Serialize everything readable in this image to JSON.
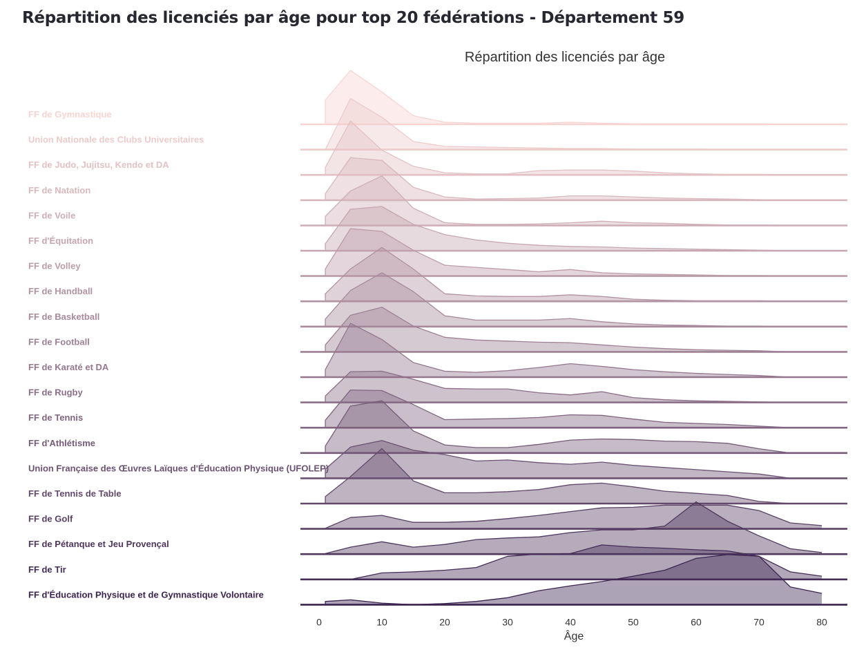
{
  "page": {
    "title": "Répartition des licenciés par âge pour top 20 fédérations - Département 59"
  },
  "chart_data": {
    "type": "area",
    "title": "Répartition des licenciés par âge",
    "xlabel": "Âge",
    "ylabel": "",
    "xlim": [
      -3,
      84
    ],
    "x_ticks": [
      0,
      10,
      20,
      30,
      40,
      50,
      60,
      70,
      80
    ],
    "x": [
      1,
      5,
      10,
      15,
      20,
      25,
      30,
      35,
      40,
      45,
      50,
      55,
      60,
      65,
      70,
      75,
      80
    ],
    "grid": false,
    "legend": "none",
    "palette": [
      "#F7D4D2",
      "#3B2450"
    ],
    "series": [
      {
        "name": "FF de Gymnastique",
        "values": [
          0.45,
          1.0,
          0.6,
          0.16,
          0.04,
          0.02,
          0.02,
          0.02,
          0.04,
          0.02,
          0.01,
          0.01,
          0.01,
          0.01,
          0.01,
          0.0,
          0.0
        ]
      },
      {
        "name": "Union Nationale des Clubs Universitaires",
        "values": [
          0.0,
          0.95,
          0.6,
          0.15,
          0.06,
          0.05,
          0.04,
          0.03,
          0.02,
          0.02,
          0.01,
          0.01,
          0.01,
          0.0,
          0.0,
          0.0,
          0.0
        ]
      },
      {
        "name": "FF de Judo, Jujitsu, Kendo et DA",
        "values": [
          0.14,
          1.0,
          0.46,
          0.16,
          0.04,
          0.02,
          0.02,
          0.08,
          0.09,
          0.09,
          0.07,
          0.04,
          0.02,
          0.01,
          0.01,
          0.0,
          0.0
        ]
      },
      {
        "name": "FF de Natation",
        "values": [
          0.12,
          0.79,
          0.74,
          0.24,
          0.06,
          0.02,
          0.03,
          0.04,
          0.08,
          0.08,
          0.06,
          0.04,
          0.03,
          0.02,
          0.01,
          0.0,
          0.0
        ]
      },
      {
        "name": "FF de Voile",
        "values": [
          0.17,
          0.64,
          0.92,
          0.32,
          0.05,
          0.02,
          0.02,
          0.03,
          0.05,
          0.08,
          0.05,
          0.04,
          0.02,
          0.01,
          0.01,
          0.0,
          0.0
        ]
      },
      {
        "name": "FF d'Équitation",
        "values": [
          0.13,
          0.77,
          0.82,
          0.49,
          0.3,
          0.2,
          0.14,
          0.1,
          0.08,
          0.07,
          0.05,
          0.04,
          0.03,
          0.02,
          0.01,
          0.0,
          0.0
        ]
      },
      {
        "name": "FF de Volley",
        "values": [
          0.13,
          0.88,
          0.83,
          0.48,
          0.2,
          0.16,
          0.12,
          0.08,
          0.12,
          0.06,
          0.04,
          0.03,
          0.02,
          0.01,
          0.01,
          0.0,
          0.0
        ]
      },
      {
        "name": "FF de Handball",
        "values": [
          0.14,
          0.6,
          1.0,
          0.6,
          0.14,
          0.1,
          0.09,
          0.09,
          0.12,
          0.09,
          0.04,
          0.02,
          0.01,
          0.01,
          0.01,
          0.0,
          0.0
        ]
      },
      {
        "name": "FF de Basketball",
        "values": [
          0.14,
          0.67,
          1.0,
          0.65,
          0.2,
          0.12,
          0.12,
          0.12,
          0.15,
          0.09,
          0.05,
          0.03,
          0.02,
          0.01,
          0.01,
          0.0,
          0.0
        ]
      },
      {
        "name": "FF de Football",
        "values": [
          0.13,
          0.68,
          0.83,
          0.48,
          0.27,
          0.22,
          0.2,
          0.18,
          0.17,
          0.13,
          0.09,
          0.06,
          0.04,
          0.03,
          0.02,
          0.0,
          0.0
        ]
      },
      {
        "name": "FF de Karaté et DA",
        "values": [
          0.14,
          1.0,
          0.7,
          0.27,
          0.11,
          0.09,
          0.12,
          0.18,
          0.25,
          0.2,
          0.14,
          0.1,
          0.07,
          0.05,
          0.03,
          0.0,
          0.0
        ]
      },
      {
        "name": "FF de Rugby",
        "values": [
          0.12,
          0.57,
          0.58,
          0.43,
          0.26,
          0.25,
          0.25,
          0.18,
          0.14,
          0.2,
          0.09,
          0.05,
          0.03,
          0.02,
          0.01,
          0.0,
          0.0
        ]
      },
      {
        "name": "FF de Tennis",
        "values": [
          0.14,
          0.7,
          0.69,
          0.43,
          0.15,
          0.16,
          0.17,
          0.19,
          0.24,
          0.23,
          0.16,
          0.1,
          0.08,
          0.06,
          0.03,
          0.0,
          0.0
        ]
      },
      {
        "name": "FF d'Athlétisme",
        "values": [
          0.13,
          0.87,
          0.97,
          0.41,
          0.15,
          0.1,
          0.1,
          0.16,
          0.24,
          0.26,
          0.25,
          0.22,
          0.21,
          0.18,
          0.08,
          0.0,
          0.0
        ]
      },
      {
        "name": "Union Française des Œuvres Laïques d'Éducation Physique (UFOLEP)",
        "values": [
          0.17,
          0.58,
          0.7,
          0.52,
          0.44,
          0.32,
          0.34,
          0.29,
          0.26,
          0.3,
          0.24,
          0.2,
          0.16,
          0.12,
          0.08,
          0.0,
          0.0
        ]
      },
      {
        "name": "FF de Tennis de Table",
        "values": [
          0.13,
          0.5,
          1.02,
          0.42,
          0.2,
          0.2,
          0.22,
          0.26,
          0.35,
          0.38,
          0.31,
          0.23,
          0.19,
          0.15,
          0.04,
          0.0,
          0.0
        ]
      },
      {
        "name": "FF de Golf",
        "values": [
          0.01,
          0.21,
          0.25,
          0.12,
          0.12,
          0.14,
          0.19,
          0.25,
          0.32,
          0.39,
          0.4,
          0.44,
          0.44,
          0.44,
          0.34,
          0.11,
          0.06
        ]
      },
      {
        "name": "FF de Pétanque et Jeu Provençal",
        "values": [
          0.01,
          0.13,
          0.23,
          0.13,
          0.18,
          0.27,
          0.3,
          0.32,
          0.4,
          0.45,
          0.45,
          0.52,
          0.97,
          0.61,
          0.34,
          0.1,
          0.03
        ]
      },
      {
        "name": "FF de Tir",
        "values": [
          0.0,
          0.0,
          0.12,
          0.14,
          0.17,
          0.22,
          0.43,
          0.47,
          0.48,
          0.64,
          0.6,
          0.58,
          0.55,
          0.53,
          0.43,
          0.14,
          0.06
        ]
      },
      {
        "name": "FF d'Éducation Physique et de Gymnastique Volontaire",
        "values": [
          0.06,
          0.09,
          0.03,
          0.0,
          0.02,
          0.06,
          0.13,
          0.26,
          0.35,
          0.43,
          0.53,
          0.64,
          0.86,
          0.93,
          0.9,
          0.33,
          0.21
        ]
      }
    ]
  }
}
